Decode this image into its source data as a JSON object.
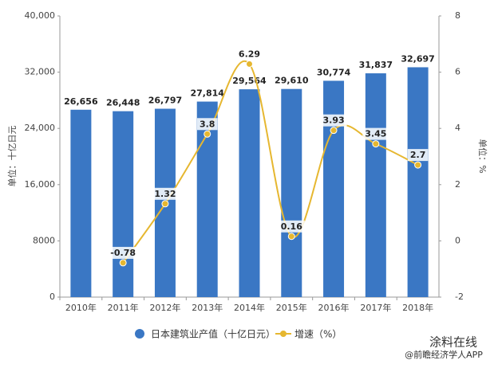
{
  "chart_data": {
    "type": "bar-line",
    "ylabel": "单位：十亿日元",
    "y2label": "单位：%",
    "categories": [
      "2010年",
      "2011年",
      "2012年",
      "2013年",
      "2014年",
      "2015年",
      "2016年",
      "2017年",
      "2018年"
    ],
    "series": [
      {
        "name": "日本建筑业产值（十亿日元）",
        "color": "#3a77c4",
        "type": "bar",
        "values": [
          26656,
          26448,
          26797,
          27814,
          29564,
          29610,
          30774,
          31837,
          32697
        ],
        "value_labels": [
          "26,656",
          "26,448",
          "26,797",
          "27,814",
          "29,564",
          "29,610",
          "30,774",
          "31,837",
          "32,697"
        ]
      },
      {
        "name": "增速（%）",
        "color": "#e6b730",
        "type": "line",
        "axis": "y2",
        "values": [
          null,
          -0.78,
          1.32,
          3.8,
          6.29,
          0.16,
          3.93,
          3.45,
          2.7
        ]
      }
    ],
    "ylim": [
      0,
      40000
    ],
    "yticks": [
      0,
      8000,
      {
        "value": 16000,
        "label": "16,000"
      },
      {
        "value": 24000,
        "label": "24,000"
      },
      {
        "value": 32000,
        "label": "32,000"
      },
      {
        "value": 40000,
        "label": "40,000"
      }
    ],
    "y2lim": [
      -2,
      8
    ],
    "y2ticks": [
      -2,
      0,
      2,
      4,
      6,
      8
    ]
  },
  "credits": [
    "涂料在线",
    "@前瞻经济学人APP"
  ]
}
